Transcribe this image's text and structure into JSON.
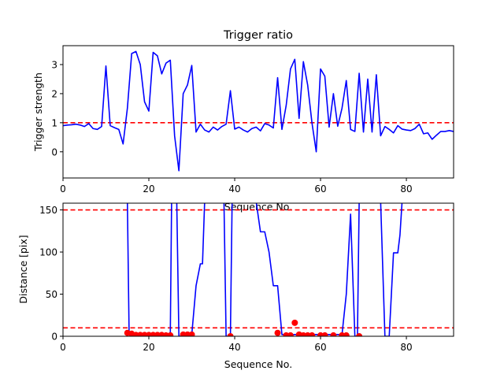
{
  "chart_data": [
    {
      "type": "line",
      "title": "Trigger ratio",
      "xlabel": "Sequence No.",
      "ylabel": "Trigger strength",
      "xlim": [
        0,
        91
      ],
      "ylim": [
        -0.9,
        3.65
      ],
      "xticks": [
        0,
        20,
        40,
        60,
        80
      ],
      "yticks": [
        0,
        1,
        2,
        3
      ],
      "grid": false,
      "threshold": {
        "value": 1.0,
        "color": "#ff0000",
        "style": "dashed"
      },
      "series": [
        {
          "color": "#0000ff",
          "x": [
            0,
            1,
            2,
            3,
            4,
            5,
            6,
            7,
            8,
            9,
            10,
            11,
            12,
            13,
            14,
            15,
            16,
            17,
            18,
            19,
            20,
            21,
            22,
            23,
            24,
            25,
            26,
            27,
            28,
            29,
            30,
            31,
            32,
            33,
            34,
            35,
            36,
            37,
            38,
            39,
            40,
            41,
            42,
            43,
            44,
            45,
            46,
            47,
            48,
            49,
            50,
            51,
            52,
            53,
            54,
            55,
            56,
            57,
            58,
            59,
            60,
            61,
            62,
            63,
            64,
            65,
            66,
            67,
            68,
            69,
            70,
            71,
            72,
            73,
            74,
            75,
            76,
            77,
            78,
            79,
            80,
            81,
            82,
            83,
            84,
            85,
            86,
            87,
            88,
            89,
            90,
            91
          ],
          "y": [
            0.9,
            0.92,
            0.93,
            0.95,
            0.92,
            0.87,
            0.97,
            0.8,
            0.77,
            0.87,
            2.95,
            0.9,
            0.83,
            0.77,
            0.27,
            1.5,
            3.38,
            3.45,
            3.0,
            1.72,
            1.4,
            3.42,
            3.3,
            2.68,
            3.05,
            3.15,
            0.55,
            -0.65,
            2.0,
            2.3,
            2.97,
            0.68,
            0.95,
            0.75,
            0.68,
            0.85,
            0.75,
            0.87,
            0.95,
            2.1,
            0.78,
            0.85,
            0.75,
            0.68,
            0.8,
            0.85,
            0.72,
            0.97,
            0.92,
            0.82,
            2.55,
            0.77,
            1.6,
            2.85,
            3.18,
            1.15,
            3.1,
            2.3,
            1.0,
            0.0,
            2.85,
            2.6,
            0.85,
            2.0,
            0.88,
            1.5,
            2.45,
            0.77,
            0.7,
            2.7,
            0.68,
            2.5,
            0.68,
            2.65,
            0.55,
            0.87,
            0.77,
            0.65,
            0.9,
            0.78,
            0.75,
            0.73,
            0.8,
            0.95,
            0.62,
            0.65,
            0.43,
            0.57,
            0.7,
            0.7,
            0.73,
            0.7
          ]
        }
      ]
    },
    {
      "type": "line",
      "title": "",
      "xlabel": "Sequence No.",
      "ylabel": "Distance [pix]",
      "xlim": [
        0,
        91
      ],
      "ylim": [
        0,
        158
      ],
      "xticks": [
        0,
        20,
        40,
        60,
        80
      ],
      "yticks": [
        0,
        50,
        100,
        150
      ],
      "grid": false,
      "thresholds": [
        {
          "value": 150,
          "color": "#ff0000",
          "style": "dashed"
        },
        {
          "value": 10,
          "color": "#ff0000",
          "style": "dashed"
        }
      ],
      "series": [
        {
          "color": "#0000ff",
          "x": [
            15,
            15.4,
            16,
            17,
            18,
            19,
            20,
            21,
            22,
            23,
            24,
            25,
            25.3,
            26,
            26.5,
            27,
            27.3,
            28,
            29,
            30,
            31,
            32,
            32.5,
            33,
            37,
            37.5,
            38,
            38.5,
            39,
            39.4,
            45,
            46,
            47,
            48,
            49,
            50,
            51,
            52,
            53,
            54,
            55,
            56,
            57,
            58,
            59,
            60,
            61,
            62,
            63,
            64,
            65,
            66,
            67,
            68,
            68.6,
            69,
            70,
            72,
            74,
            75,
            76,
            77,
            78,
            78.5,
            79
          ],
          "y": [
            160,
            3,
            3,
            2,
            2,
            2,
            2,
            2,
            2,
            2,
            2,
            2,
            160,
            160,
            160,
            0,
            0,
            2,
            2,
            2,
            60,
            86,
            86,
            160,
            160,
            160,
            0,
            0,
            0,
            160,
            160,
            124,
            124,
            100,
            60,
            60,
            2,
            2,
            2,
            2,
            2,
            2,
            2,
            2,
            2,
            2,
            2,
            2,
            2,
            2,
            2,
            50,
            145,
            0,
            0,
            160,
            160,
            160,
            160,
            0,
            0,
            99,
            99,
            120,
            160
          ]
        },
        {
          "name": "",
          "type": "scatter",
          "color": "#ff0000",
          "x": [
            15,
            16,
            17,
            18,
            19,
            20,
            21,
            22,
            23,
            24,
            25,
            28,
            29,
            30,
            39,
            50,
            52,
            53,
            54,
            55,
            56,
            57,
            58,
            60,
            61,
            63,
            65,
            66,
            69
          ],
          "y": [
            4,
            3,
            1.5,
            1.5,
            1.5,
            1.5,
            1.5,
            1.5,
            1.5,
            1,
            1,
            2,
            2,
            2,
            0,
            4,
            1,
            1,
            16,
            2,
            1,
            1,
            1,
            1,
            1,
            1,
            1,
            1,
            0
          ]
        }
      ]
    }
  ]
}
